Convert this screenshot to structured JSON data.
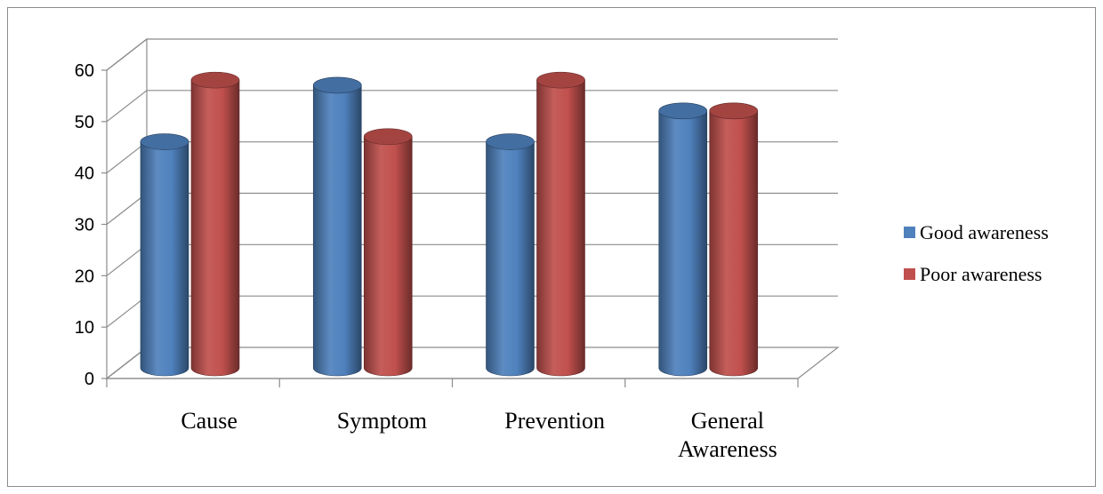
{
  "chart_data": {
    "type": "bar",
    "style": "3d-cylinder",
    "title": "",
    "xlabel": "",
    "ylabel": "",
    "categories": [
      "Cause",
      "Symptom",
      "Prevention",
      "General Awareness"
    ],
    "series": [
      {
        "name": "Good awareness",
        "values": [
          44,
          55,
          44,
          50
        ],
        "color": "#4f81bd"
      },
      {
        "name": "Poor awareness",
        "values": [
          56,
          45,
          56,
          50
        ],
        "color": "#c0504d"
      }
    ],
    "ylim": [
      0,
      60
    ],
    "yticks": [
      "0",
      "10",
      "20",
      "30",
      "40",
      "50",
      "60"
    ],
    "grid": true,
    "legend_position": "right"
  }
}
